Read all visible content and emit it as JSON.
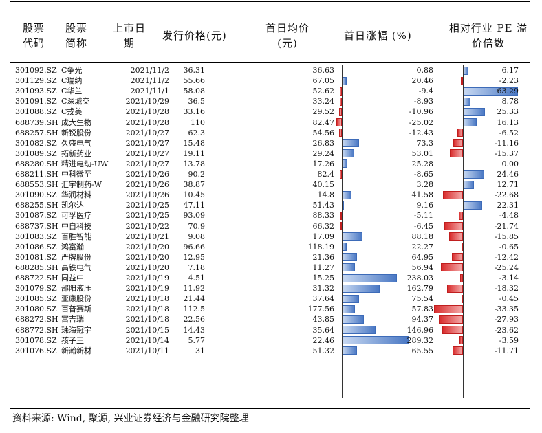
{
  "headers": {
    "code": [
      "股票",
      "代码"
    ],
    "name": [
      "股票",
      "简称"
    ],
    "date": [
      "上市日",
      "期"
    ],
    "price": "发行价格(元)",
    "avg": [
      "首日均价",
      "(元)"
    ],
    "gain": "首日涨幅 (%)",
    "pe": [
      "相对行业 PE 溢",
      "价倍数"
    ]
  },
  "rows": [
    {
      "code": "301092.SZ",
      "name": "C争光",
      "date": "2021/11/2",
      "price": "36.31",
      "avg": "36.63",
      "gain": "0.88",
      "gain_val": 0.88,
      "pe": "6.17",
      "pe_val": 6.17
    },
    {
      "code": "301129.SZ",
      "name": "C瑞纳",
      "date": "2021/11/2",
      "price": "55.66",
      "avg": "67.05",
      "gain": "20.46",
      "gain_val": 20.46,
      "pe": "-2.23",
      "pe_val": -2.23
    },
    {
      "code": "301093.SZ",
      "name": "C华兰",
      "date": "2021/11/1",
      "price": "58.08",
      "avg": "52.62",
      "gain": "-9.4",
      "gain_val": -9.4,
      "pe": "63.29",
      "pe_val": 63.29
    },
    {
      "code": "301091.SZ",
      "name": "C深城交",
      "date": "2021/10/29",
      "price": "36.5",
      "avg": "33.24",
      "gain": "-8.93",
      "gain_val": -8.93,
      "pe": "8.78",
      "pe_val": 8.78
    },
    {
      "code": "301088.SZ",
      "name": "C戎美",
      "date": "2021/10/28",
      "price": "33.16",
      "avg": "29.52",
      "gain": "-10.96",
      "gain_val": -10.96,
      "pe": "25.33",
      "pe_val": 25.33
    },
    {
      "code": "688739.SH",
      "name": "成大生物",
      "date": "2021/10/28",
      "price": "110",
      "avg": "82.47",
      "gain": "-25.02",
      "gain_val": -25.02,
      "pe": "16.13",
      "pe_val": 16.13
    },
    {
      "code": "688257.SH",
      "name": "新锐股份",
      "date": "2021/10/27",
      "price": "62.3",
      "avg": "54.56",
      "gain": "-12.43",
      "gain_val": -12.43,
      "pe": "-6.52",
      "pe_val": -6.52
    },
    {
      "code": "301082.SZ",
      "name": "久盛电气",
      "date": "2021/10/27",
      "price": "15.48",
      "avg": "26.83",
      "gain": "73.3",
      "gain_val": 73.3,
      "pe": "-11.16",
      "pe_val": -11.16
    },
    {
      "code": "301089.SZ",
      "name": "拓新药业",
      "date": "2021/10/27",
      "price": "19.11",
      "avg": "29.24",
      "gain": "53.01",
      "gain_val": 53.01,
      "pe": "-15.37",
      "pe_val": -15.37
    },
    {
      "code": "688280.SH",
      "name": "精进电动-UW",
      "date": "2021/10/27",
      "price": "13.78",
      "avg": "17.26",
      "gain": "25.28",
      "gain_val": 25.28,
      "pe": "0.00",
      "pe_val": 0
    },
    {
      "code": "688211.SH",
      "name": "中科微至",
      "date": "2021/10/26",
      "price": "90.2",
      "avg": "82.4",
      "gain": "-8.65",
      "gain_val": -8.65,
      "pe": "24.46",
      "pe_val": 24.46
    },
    {
      "code": "688553.SH",
      "name": "汇宇制药-W",
      "date": "2021/10/26",
      "price": "38.87",
      "avg": "40.15",
      "gain": "3.28",
      "gain_val": 3.28,
      "pe": "12.71",
      "pe_val": 12.71
    },
    {
      "code": "301090.SZ",
      "name": "华润材料",
      "date": "2021/10/26",
      "price": "10.45",
      "avg": "14.8",
      "gain": "41.58",
      "gain_val": 41.58,
      "pe": "-22.68",
      "pe_val": -22.68
    },
    {
      "code": "688255.SH",
      "name": "凯尔达",
      "date": "2021/10/25",
      "price": "47.11",
      "avg": "51.43",
      "gain": "9.16",
      "gain_val": 9.16,
      "pe": "22.31",
      "pe_val": 22.31
    },
    {
      "code": "301087.SZ",
      "name": "可孚医疗",
      "date": "2021/10/25",
      "price": "93.09",
      "avg": "88.33",
      "gain": "-5.11",
      "gain_val": -5.11,
      "pe": "-4.48",
      "pe_val": -4.48
    },
    {
      "code": "688737.SH",
      "name": "中自科技",
      "date": "2021/10/22",
      "price": "70.9",
      "avg": "66.32",
      "gain": "-6.45",
      "gain_val": -6.45,
      "pe": "-21.74",
      "pe_val": -21.74
    },
    {
      "code": "301083.SZ",
      "name": "百胜智能",
      "date": "2021/10/21",
      "price": "9.08",
      "avg": "17.09",
      "gain": "88.18",
      "gain_val": 88.18,
      "pe": "-15.85",
      "pe_val": -15.85
    },
    {
      "code": "301086.SZ",
      "name": "鸿富瀚",
      "date": "2021/10/20",
      "price": "96.66",
      "avg": "118.19",
      "gain": "22.27",
      "gain_val": 22.27,
      "pe": "-0.65",
      "pe_val": -0.65
    },
    {
      "code": "301081.SZ",
      "name": "严牌股份",
      "date": "2021/10/20",
      "price": "12.95",
      "avg": "21.36",
      "gain": "64.95",
      "gain_val": 64.95,
      "pe": "-12.42",
      "pe_val": -12.42
    },
    {
      "code": "688285.SH",
      "name": "高铁电气",
      "date": "2021/10/20",
      "price": "7.18",
      "avg": "11.27",
      "gain": "56.94",
      "gain_val": 56.94,
      "pe": "-25.24",
      "pe_val": -25.24
    },
    {
      "code": "688722.SH",
      "name": "同益中",
      "date": "2021/10/19",
      "price": "4.51",
      "avg": "15.25",
      "gain": "238.03",
      "gain_val": 238.03,
      "pe": "-3.14",
      "pe_val": -3.14
    },
    {
      "code": "301079.SZ",
      "name": "邵阳液压",
      "date": "2021/10/19",
      "price": "11.92",
      "avg": "31.32",
      "gain": "162.79",
      "gain_val": 162.79,
      "pe": "-18.32",
      "pe_val": -18.32
    },
    {
      "code": "301085.SZ",
      "name": "亚康股份",
      "date": "2021/10/18",
      "price": "21.44",
      "avg": "37.64",
      "gain": "75.54",
      "gain_val": 75.54,
      "pe": "-0.45",
      "pe_val": -0.45
    },
    {
      "code": "301080.SZ",
      "name": "百普赛斯",
      "date": "2021/10/18",
      "price": "112.5",
      "avg": "177.56",
      "gain": "57.83",
      "gain_val": 57.83,
      "pe": "-33.35",
      "pe_val": -33.35
    },
    {
      "code": "688272.SH",
      "name": "富吉瑞",
      "date": "2021/10/18",
      "price": "22.56",
      "avg": "43.85",
      "gain": "94.37",
      "gain_val": 94.37,
      "pe": "-27.93",
      "pe_val": -27.93
    },
    {
      "code": "688772.SH",
      "name": "珠海冠宇",
      "date": "2021/10/15",
      "price": "14.43",
      "avg": "35.64",
      "gain": "146.96",
      "gain_val": 146.96,
      "pe": "-23.62",
      "pe_val": -23.62
    },
    {
      "code": "301078.SZ",
      "name": "孩子王",
      "date": "2021/10/14",
      "price": "5.77",
      "avg": "22.46",
      "gain": "289.32",
      "gain_val": 289.32,
      "pe": "-3.59",
      "pe_val": -3.59
    },
    {
      "code": "301076.SZ",
      "name": "新瀚新材",
      "date": "2021/10/11",
      "price": "31",
      "avg": "51.32",
      "gain": "65.55",
      "gain_val": 65.55,
      "pe": "-11.71",
      "pe_val": -11.71
    }
  ],
  "footer": "资料来源: Wind, 聚源, 兴业证券经济与金融研究院整理",
  "colors": {
    "positive_bar": "#4a78c4",
    "negative_bar": "#d92d2d"
  }
}
